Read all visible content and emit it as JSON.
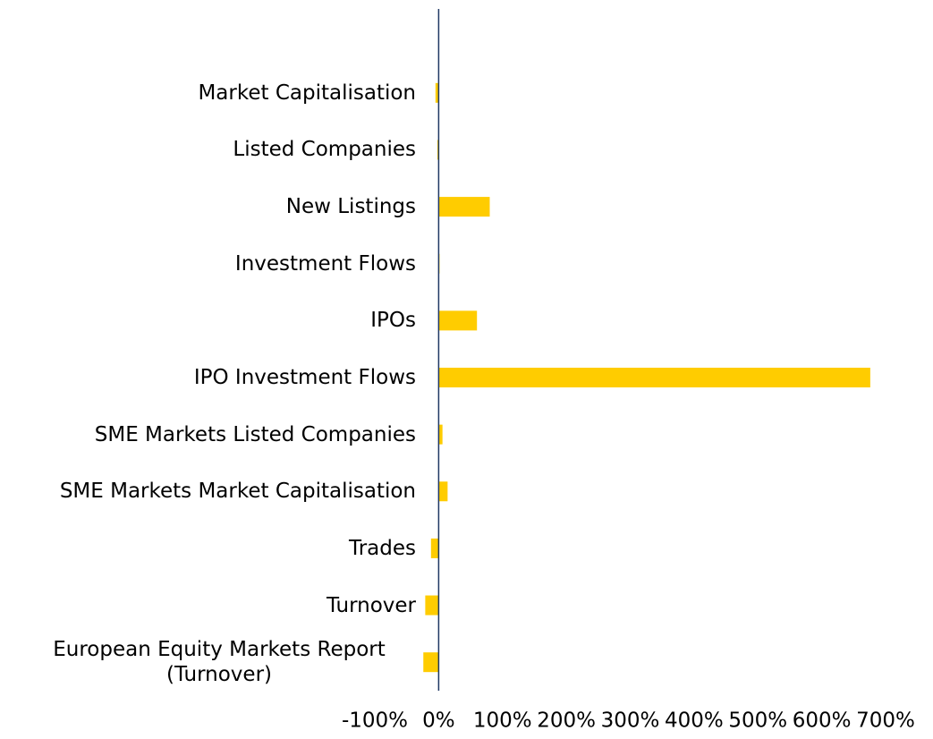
{
  "chart_data": {
    "type": "barh",
    "categories": [
      "Market Capitalisation",
      "Listed Companies",
      "New Listings",
      "Investment Flows",
      "IPOs",
      "IPO Investment Flows",
      "SME Markets Listed Companies",
      "SME Markets Market Capitalisation",
      "Trades",
      "Turnover",
      "European Equity Markets Report (Turnover)"
    ],
    "values": [
      -5,
      -2,
      80,
      1,
      60,
      676,
      6,
      14,
      -12,
      -21,
      -24
    ],
    "color": "#ffcc00",
    "xlim": [
      -100,
      700
    ],
    "xticks": [
      {
        "value": -100,
        "label": "-100%"
      },
      {
        "value": 0,
        "label": "0%"
      },
      {
        "value": 100,
        "label": "100%"
      },
      {
        "value": 200,
        "label": "200%"
      },
      {
        "value": 300,
        "label": "300%"
      },
      {
        "value": 400,
        "label": "400%"
      },
      {
        "value": 500,
        "label": "500%"
      },
      {
        "value": 600,
        "label": "600%"
      },
      {
        "value": 700,
        "label": "700%"
      }
    ],
    "grid": false
  }
}
